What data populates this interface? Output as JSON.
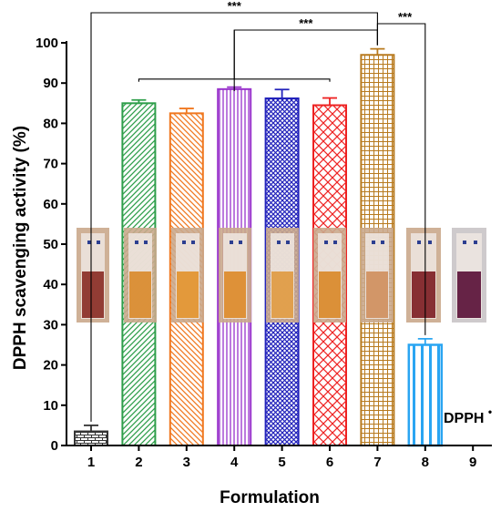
{
  "chart_data": {
    "type": "bar",
    "xlabel": "Formulation",
    "ylabel": "DPPH scavenging activity (%)",
    "ylim": [
      0,
      100
    ],
    "yticks": [
      0,
      10,
      20,
      30,
      40,
      50,
      60,
      70,
      80,
      90,
      100
    ],
    "categories": [
      "1",
      "2",
      "3",
      "4",
      "5",
      "6",
      "7",
      "8",
      "9"
    ],
    "values": [
      3.5,
      85.0,
      82.5,
      88.5,
      86.2,
      84.5,
      97.0,
      25.0,
      null
    ],
    "errors": [
      1.5,
      0.8,
      1.2,
      0.5,
      2.2,
      1.8,
      1.5,
      1.5,
      null
    ],
    "bar_styles": [
      {
        "color": "#333333",
        "pattern": "bricks"
      },
      {
        "color": "#2e9e4a",
        "pattern": "diag-right"
      },
      {
        "color": "#f07820",
        "pattern": "diag-left"
      },
      {
        "color": "#9933cc",
        "pattern": "vertical"
      },
      {
        "color": "#2222bb",
        "pattern": "crosshatch"
      },
      {
        "color": "#ee2222",
        "pattern": "diamond"
      },
      {
        "color": "#b87a1e",
        "pattern": "grid"
      },
      {
        "color": "#2aa5f2",
        "pattern": "vertical-wide"
      },
      {
        "color": "#000000",
        "pattern": "none"
      }
    ],
    "annotation": "DPPH",
    "annotation_superscript": "•",
    "significance": [
      {
        "label": "***",
        "from": "1",
        "to": "7"
      },
      {
        "label": "***",
        "from": "4",
        "to": "7"
      },
      {
        "label": "***",
        "from": "7",
        "to": "8"
      }
    ],
    "grid": false,
    "legend": "none"
  },
  "vial_colors": [
    "#8a2e26",
    "#d98a2c",
    "#e2932e",
    "#dc8a2a",
    "#e09a42",
    "#d9892a",
    "#cf8f5e",
    "#7e1f25",
    "#5a1238"
  ]
}
